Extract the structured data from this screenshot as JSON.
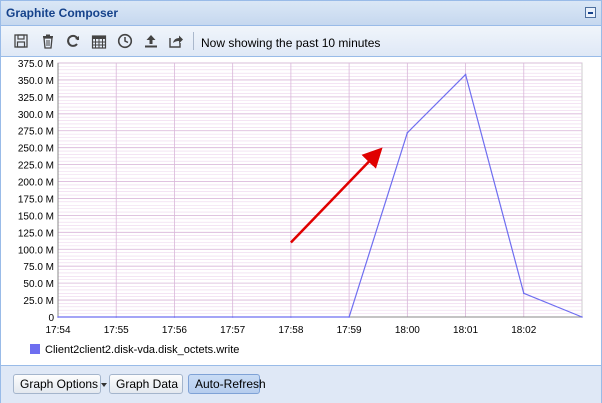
{
  "window": {
    "title": "Graphite Composer"
  },
  "toolbar": {
    "icons": [
      "save-icon",
      "trash-icon",
      "refresh-icon",
      "calendar-icon",
      "clock-icon",
      "upload-icon",
      "share-icon"
    ],
    "status_text": "Now showing the past 10 minutes"
  },
  "chart_data": {
    "type": "line",
    "x": [
      "17:54",
      "17:55",
      "17:56",
      "17:57",
      "17:58",
      "17:59",
      "18:00",
      "18:01",
      "18:02"
    ],
    "ytick_labels": [
      "0",
      "25.0 M",
      "50.0 M",
      "75.0 M",
      "100.0 M",
      "125.0 M",
      "150.0 M",
      "175.0 M",
      "200.0 M",
      "225.0 M",
      "250.0 M",
      "275.0 M",
      "300.0 M",
      "325.0 M",
      "350.0 M",
      "375.0 M"
    ],
    "ylim": [
      0,
      375
    ],
    "ytick_step": 25,
    "grid": true,
    "legend_placement": "bottom-left",
    "series": [
      {
        "name": "Client2client2.disk-vda.disk_octets.write",
        "color": "#6e6ef0",
        "points": [
          [
            0,
            0
          ],
          [
            1,
            0
          ],
          [
            2,
            0
          ],
          [
            3,
            0
          ],
          [
            4,
            0
          ],
          [
            5,
            0
          ],
          [
            6,
            272
          ],
          [
            7,
            358
          ],
          [
            8,
            35
          ],
          [
            9,
            0
          ]
        ]
      }
    ],
    "annotation": {
      "type": "arrow",
      "color": "#e00000"
    }
  },
  "buttons": {
    "graph_options": "Graph Options",
    "graph_data": "Graph Data",
    "auto_refresh": "Auto-Refresh"
  }
}
